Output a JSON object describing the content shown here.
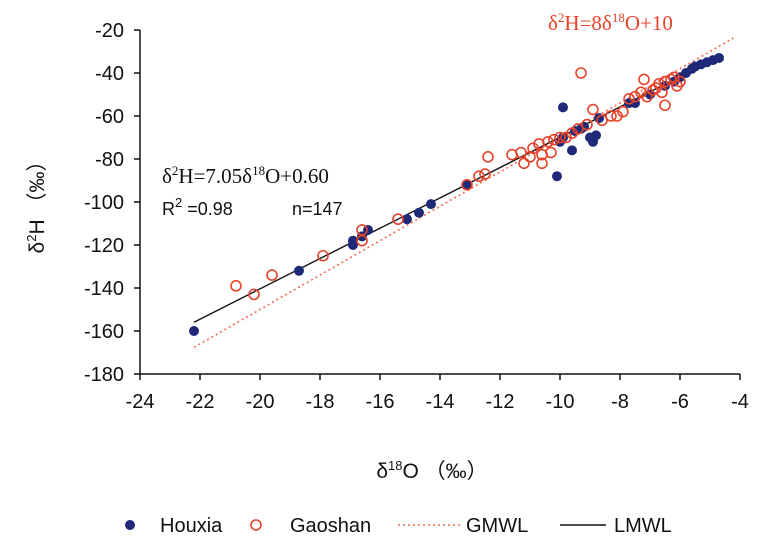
{
  "chart_data": {
    "type": "scatter",
    "title": "",
    "xlabel": "δ18O （‰）",
    "ylabel": "δ2H （‰）",
    "xlim": [
      -24,
      -4
    ],
    "ylim": [
      -180,
      -20
    ],
    "x_ticks": [
      -24,
      -22,
      -20,
      -18,
      -16,
      -14,
      -12,
      -10,
      -8,
      -6,
      -4
    ],
    "y_ticks": [
      -20,
      -40,
      -60,
      -80,
      -100,
      -120,
      -140,
      -160,
      -180
    ],
    "grid": false,
    "legend_position": "bottom",
    "legend": [
      "Houxia",
      "Gaoshan",
      "GMWL",
      "LMWL"
    ],
    "annotations": {
      "gmwl": "δ2H=8δ18O+10",
      "lmwl": "δ2H=7.05δ18O+0.60",
      "r2": "R2 =0.98",
      "n": "n=147"
    },
    "lines": [
      {
        "name": "GMWL",
        "slope": 8,
        "intercept": 10,
        "x_range": [
          -22.2,
          -4.2
        ],
        "color": "#f26b4f",
        "style": "dotted"
      },
      {
        "name": "LMWL",
        "slope": 7.05,
        "intercept": 0.6,
        "x_range": [
          -22.2,
          -4.7
        ],
        "color": "#111111",
        "style": "solid"
      }
    ],
    "series": [
      {
        "name": "Houxia",
        "marker": "filled-circle",
        "color": "#1e2a78",
        "points": [
          [
            -22.2,
            -160
          ],
          [
            -18.7,
            -132
          ],
          [
            -16.9,
            -120
          ],
          [
            -16.9,
            -118
          ],
          [
            -16.6,
            -116
          ],
          [
            -16.4,
            -113
          ],
          [
            -15.1,
            -108
          ],
          [
            -14.7,
            -105
          ],
          [
            -14.3,
            -101
          ],
          [
            -13.1,
            -92
          ],
          [
            -10.1,
            -88
          ],
          [
            -9.9,
            -56
          ],
          [
            -10.0,
            -72
          ],
          [
            -9.9,
            -70
          ],
          [
            -9.6,
            -76
          ],
          [
            -9.5,
            -67
          ],
          [
            -9.3,
            -66
          ],
          [
            -9.2,
            -65
          ],
          [
            -9.0,
            -70
          ],
          [
            -8.9,
            -72
          ],
          [
            -8.8,
            -69
          ],
          [
            -8.7,
            -61
          ],
          [
            -7.7,
            -54
          ],
          [
            -7.5,
            -54
          ],
          [
            -7.0,
            -50
          ],
          [
            -6.5,
            -46
          ],
          [
            -6.2,
            -44
          ],
          [
            -6.0,
            -42
          ],
          [
            -5.8,
            -40
          ],
          [
            -5.6,
            -38
          ],
          [
            -5.5,
            -37
          ],
          [
            -5.3,
            -36
          ],
          [
            -5.1,
            -35
          ],
          [
            -4.9,
            -34
          ],
          [
            -4.7,
            -33
          ]
        ]
      },
      {
        "name": "Gaoshan",
        "marker": "open-circle",
        "color": "#e8432b",
        "points": [
          [
            -20.8,
            -139
          ],
          [
            -20.2,
            -143
          ],
          [
            -19.6,
            -134
          ],
          [
            -17.9,
            -125
          ],
          [
            -16.6,
            -113
          ],
          [
            -16.6,
            -118
          ],
          [
            -15.4,
            -108
          ],
          [
            -13.1,
            -92
          ],
          [
            -12.7,
            -88
          ],
          [
            -12.5,
            -87
          ],
          [
            -12.4,
            -79
          ],
          [
            -11.6,
            -78
          ],
          [
            -11.3,
            -77
          ],
          [
            -11.2,
            -82
          ],
          [
            -11.0,
            -79
          ],
          [
            -10.9,
            -75
          ],
          [
            -10.7,
            -73
          ],
          [
            -10.6,
            -78
          ],
          [
            -10.6,
            -82
          ],
          [
            -10.4,
            -72
          ],
          [
            -10.3,
            -77
          ],
          [
            -10.2,
            -71
          ],
          [
            -10.0,
            -70
          ],
          [
            -9.8,
            -70
          ],
          [
            -9.6,
            -68
          ],
          [
            -9.4,
            -66
          ],
          [
            -9.3,
            -40
          ],
          [
            -9.1,
            -64
          ],
          [
            -8.9,
            -57
          ],
          [
            -8.6,
            -62
          ],
          [
            -8.3,
            -60
          ],
          [
            -8.1,
            -60
          ],
          [
            -7.9,
            -58
          ],
          [
            -7.7,
            -52
          ],
          [
            -7.5,
            -51
          ],
          [
            -7.3,
            -49
          ],
          [
            -7.2,
            -43
          ],
          [
            -7.1,
            -51
          ],
          [
            -6.9,
            -48
          ],
          [
            -6.8,
            -47
          ],
          [
            -6.7,
            -45
          ],
          [
            -6.6,
            -49
          ],
          [
            -6.5,
            -44
          ],
          [
            -6.5,
            -55
          ],
          [
            -6.3,
            -43
          ],
          [
            -6.2,
            -42
          ],
          [
            -6.1,
            -46
          ],
          [
            -6.0,
            -44
          ]
        ]
      }
    ]
  }
}
